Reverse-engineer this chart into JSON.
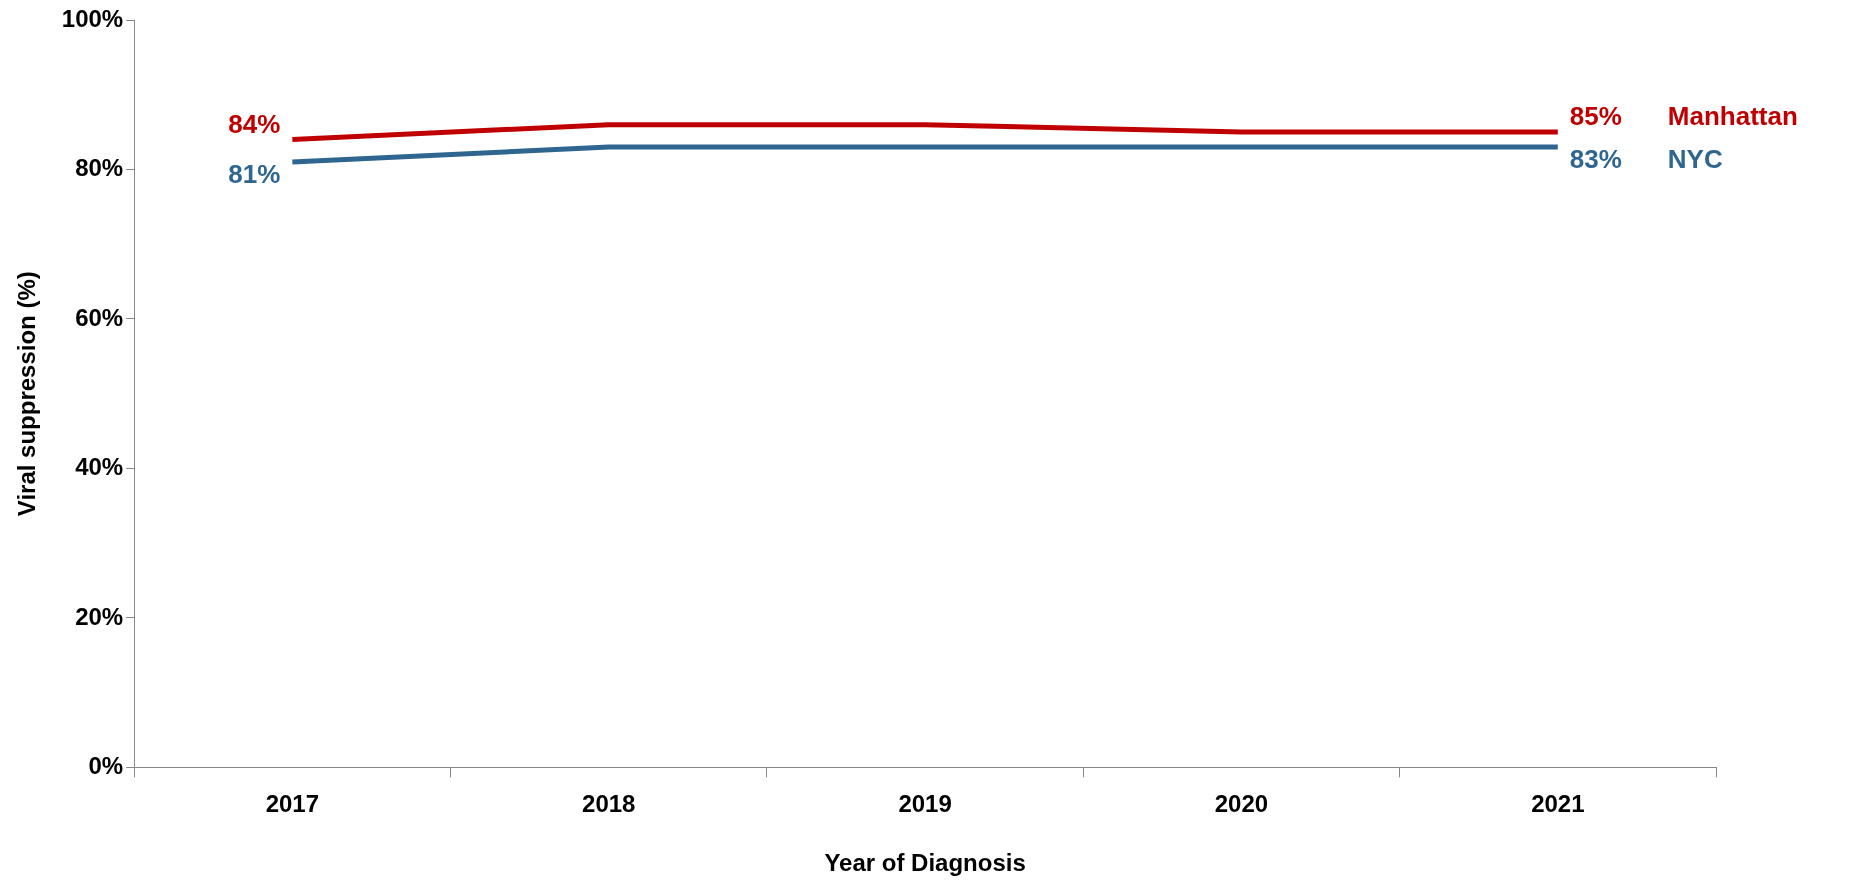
{
  "chart_data": {
    "type": "line",
    "xlabel": "Year of Diagnosis",
    "ylabel": "Viral suppression (%)",
    "categories": [
      "2017",
      "2018",
      "2019",
      "2020",
      "2021"
    ],
    "series": [
      {
        "name": "Manhattan",
        "color": "#c00000",
        "values": [
          84,
          86,
          86,
          85,
          85
        ],
        "value_labels": [
          "84%",
          null,
          null,
          null,
          "85%"
        ]
      },
      {
        "name": "NYC",
        "color": "#2e6690",
        "values": [
          81,
          83,
          83,
          83,
          83
        ],
        "value_labels": [
          "81%",
          null,
          null,
          null,
          "83%"
        ]
      }
    ],
    "ylim": [
      0,
      100
    ],
    "yticks": [
      {
        "value": 0,
        "label": "0%"
      },
      {
        "value": 20,
        "label": "20%"
      },
      {
        "value": 40,
        "label": "40%"
      },
      {
        "value": 60,
        "label": "60%"
      },
      {
        "value": 80,
        "label": "80%"
      },
      {
        "value": 100,
        "label": "100%"
      }
    ],
    "grid": false,
    "legend": false,
    "marker": "none",
    "line_style": "solid"
  }
}
